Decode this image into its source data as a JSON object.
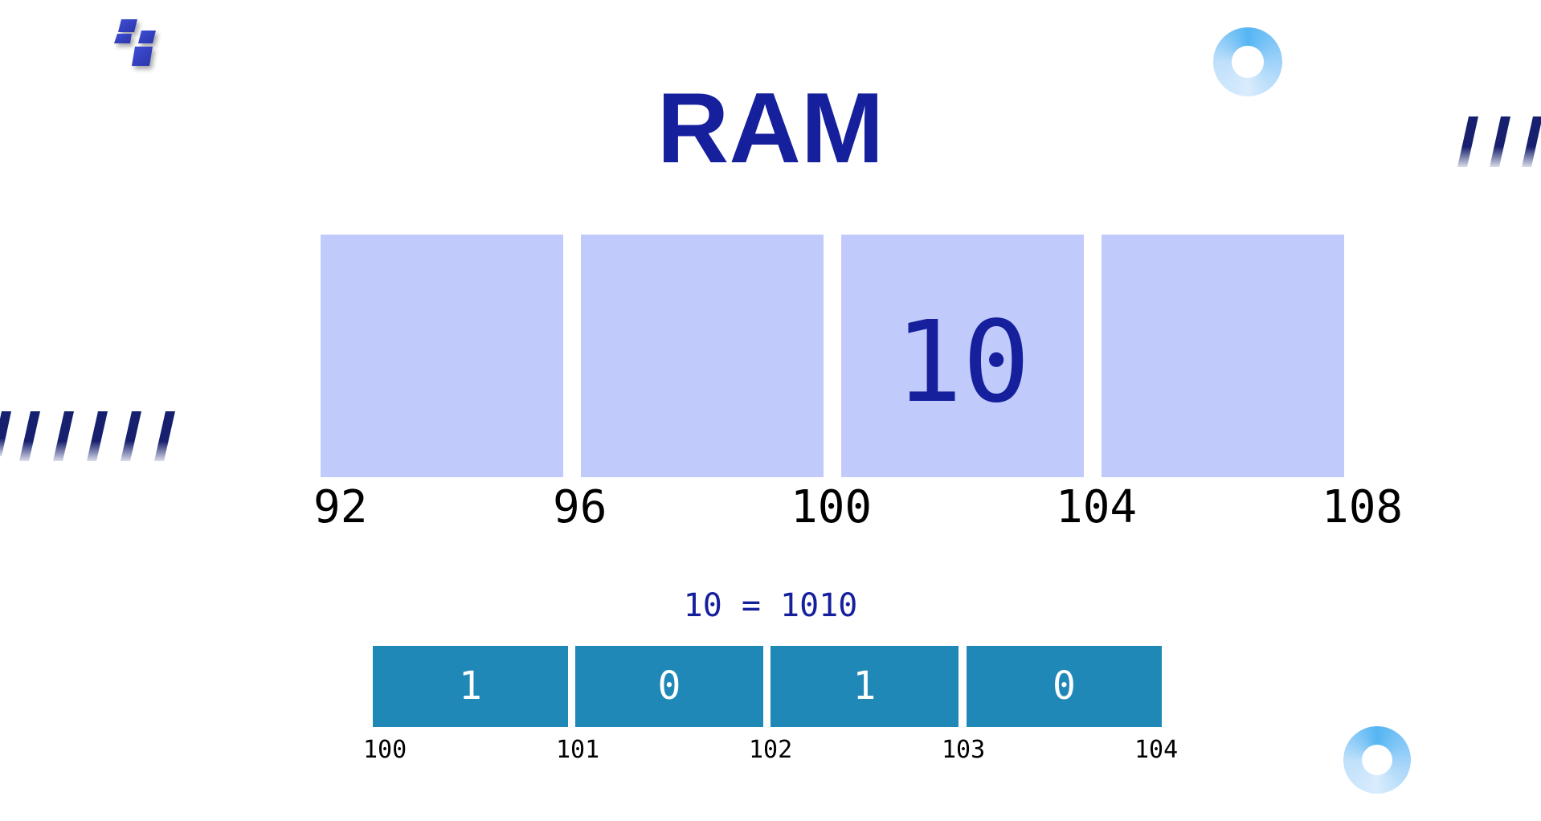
{
  "title": "RAM",
  "colors": {
    "title": "#16209c",
    "cell_fill": "#c1cbfb",
    "bit_fill": "#1f88b7",
    "decor_stripe": "#16206e",
    "ring": "#7fc4f6"
  },
  "memory": {
    "cells": [
      {
        "value": ""
      },
      {
        "value": ""
      },
      {
        "value": "10"
      },
      {
        "value": ""
      }
    ],
    "addresses": [
      "92",
      "96",
      "100",
      "104",
      "108"
    ]
  },
  "binary": {
    "equation": "10 = 1010",
    "bits": [
      "1",
      "0",
      "1",
      "0"
    ],
    "addresses": [
      "100",
      "101",
      "102",
      "103",
      "104"
    ]
  },
  "icons": {
    "logo": "logo-icon",
    "ring": "ring-icon",
    "stripes": "stripes-icon"
  }
}
